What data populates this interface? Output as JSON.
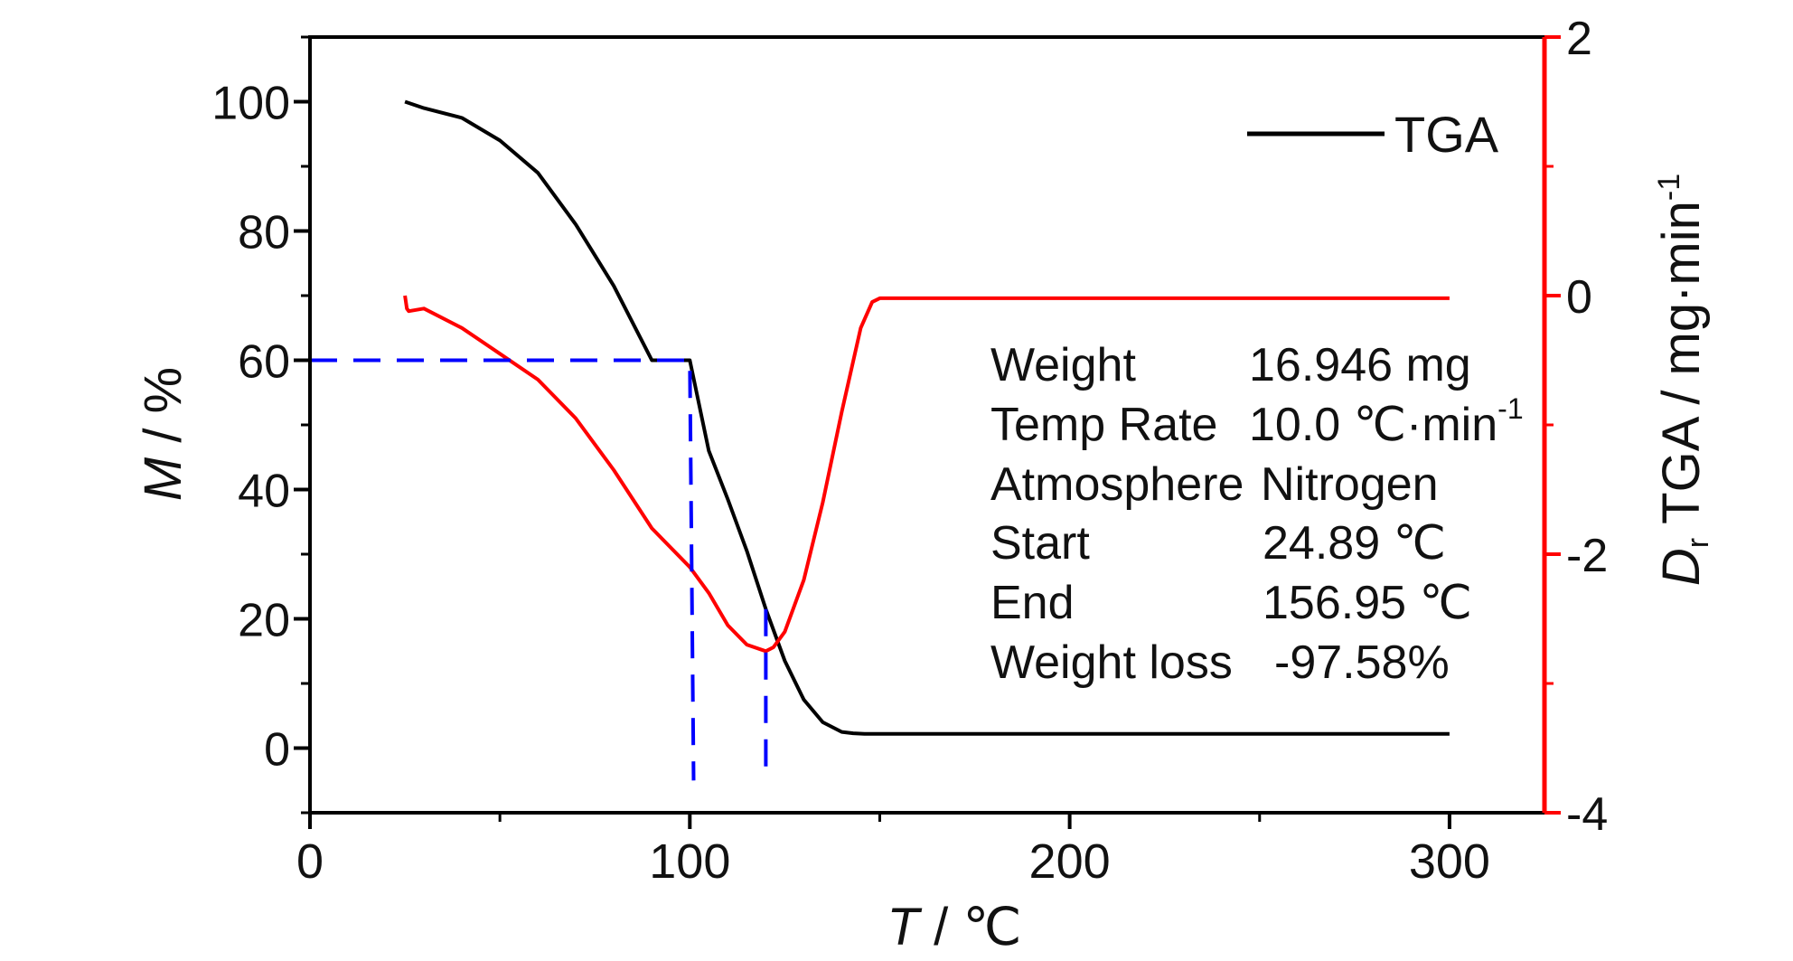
{
  "chart_data": {
    "type": "line",
    "xlabel": {
      "var": "T",
      "sep": " / ",
      "unit": "℃"
    },
    "ylabel_left": {
      "var": "M",
      "sep": " / ",
      "unit": "%"
    },
    "ylabel_right": {
      "var": "D",
      "sub": "r",
      "rest": " TGA / mg·min",
      "sup": "-1"
    },
    "xlim": [
      0,
      325
    ],
    "ylim_left": [
      -10,
      110
    ],
    "ylim_right": [
      -4,
      2
    ],
    "x_ticks": [
      0,
      100,
      200,
      300
    ],
    "y_left_ticks": [
      0,
      20,
      40,
      60,
      80,
      100
    ],
    "y_right_ticks": [
      -4,
      -2,
      0,
      2
    ],
    "x_tick_labels": [
      "0",
      "100",
      "200",
      "300"
    ],
    "y_left_tick_labels": [
      "0",
      "20",
      "40",
      "60",
      "80",
      "100"
    ],
    "y_right_tick_labels": [
      "-4",
      "-2",
      "0",
      "2"
    ],
    "grid": false,
    "legend": {
      "position": "top-right",
      "entries": [
        {
          "label": "TGA",
          "color": "#000000"
        }
      ]
    },
    "series": [
      {
        "name": "TGA",
        "axis": "left",
        "color": "#000000",
        "x": [
          25,
          30,
          40,
          50,
          60,
          70,
          80,
          90,
          95,
          100,
          105,
          110,
          115,
          120,
          125,
          130,
          135,
          140,
          143,
          146,
          150,
          160,
          200,
          250,
          300
        ],
        "y": [
          100,
          99,
          97.5,
          94,
          89,
          81,
          71.5,
          60,
          60,
          60,
          46,
          38.5,
          30.5,
          21.5,
          13.5,
          7.5,
          4,
          2.5,
          2.3,
          2.2,
          2.2,
          2.2,
          2.2,
          2.2,
          2.2
        ]
      },
      {
        "name": "",
        "axis": "right",
        "color": "#ff0000",
        "x": [
          25,
          25.5,
          26,
          30,
          40,
          50,
          60,
          70,
          80,
          90,
          95,
          100,
          105,
          110,
          115,
          120,
          122,
          125,
          130,
          135,
          140,
          145,
          148,
          150,
          160,
          200,
          250,
          300
        ],
        "y": [
          0,
          -0.1,
          -0.12,
          -0.1,
          -0.25,
          -0.45,
          -0.65,
          -0.95,
          -1.35,
          -1.8,
          -1.95,
          -2.1,
          -2.3,
          -2.55,
          -2.7,
          -2.75,
          -2.72,
          -2.6,
          -2.2,
          -1.6,
          -0.9,
          -0.25,
          -0.05,
          -0.02,
          -0.02,
          -0.02,
          -0.02,
          -0.02
        ]
      }
    ],
    "reference_lines": [
      {
        "color": "#0000ff",
        "dash": true,
        "points": [
          [
            0,
            60
          ],
          [
            100,
            60
          ],
          [
            101,
            -5
          ]
        ]
      },
      {
        "color": "#0000ff",
        "dash": true,
        "points": [
          [
            120,
            21.5
          ],
          [
            120,
            -5
          ]
        ]
      }
    ],
    "annotations": [
      {
        "label": "Weight",
        "value": "16.946 mg"
      },
      {
        "label": "Temp Rate",
        "value": "10.0 ℃·min",
        "value_sup": "-1"
      },
      {
        "label": "Atmosphere",
        "value": "Nitrogen"
      },
      {
        "label": "Start",
        "value": "24.89 ℃"
      },
      {
        "label": "End",
        "value": "156.95 ℃"
      },
      {
        "label": "Weight loss",
        "value": "-97.58%"
      }
    ]
  }
}
